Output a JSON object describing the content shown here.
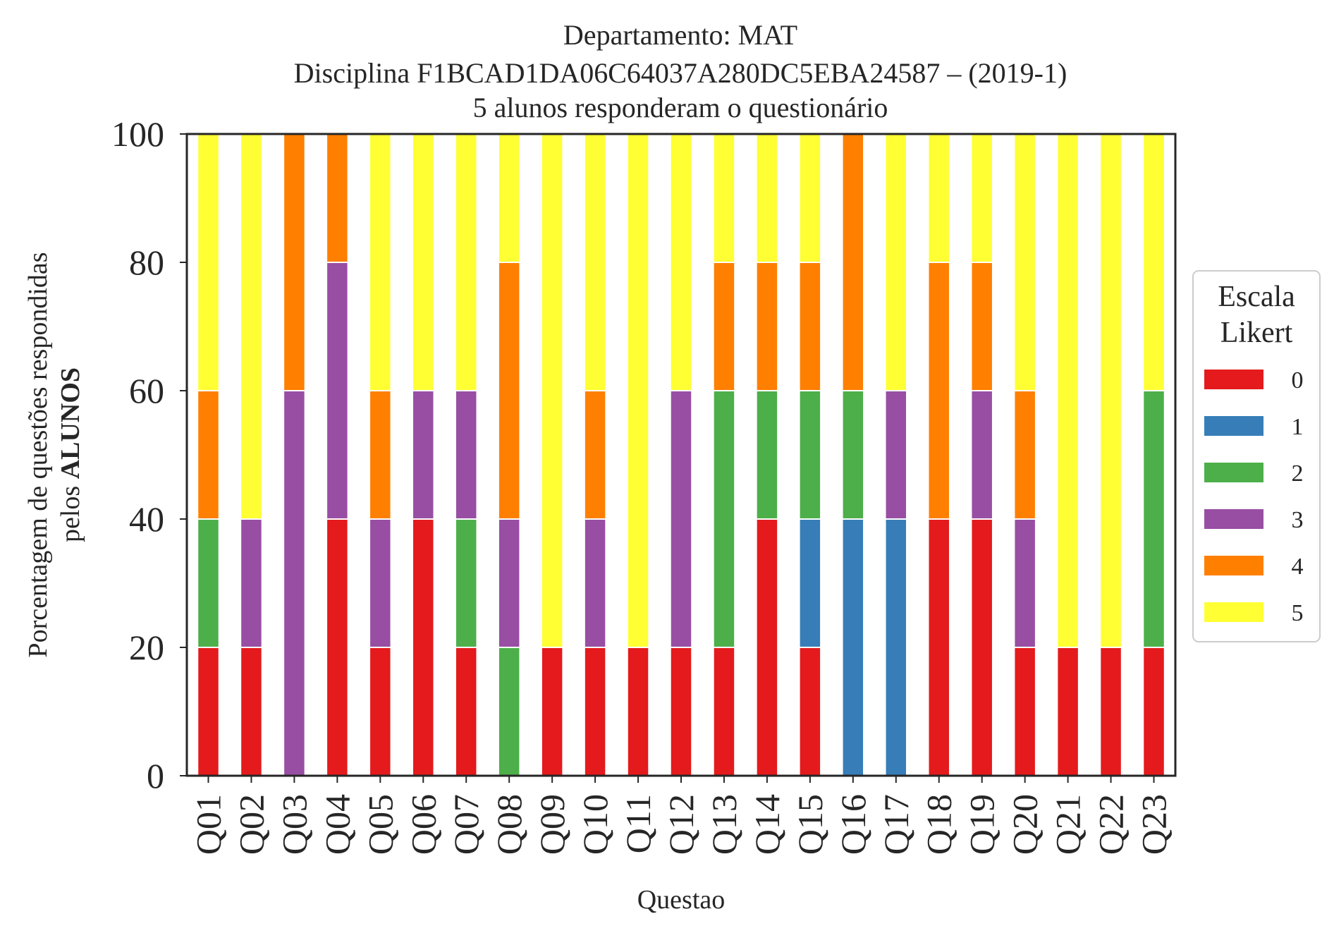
{
  "chart_data": {
    "type": "bar",
    "stacked": true,
    "title_lines": [
      "Departamento: MAT",
      "Disciplina F1BCAD1DA06C64037A280DC5EBA24587 – (2019-1)",
      "5 alunos responderam o questionário"
    ],
    "xlabel": "Questao",
    "ylabel_line1": "Porcentagem de questões respondidas",
    "ylabel_line2_prefix": "pelos ",
    "ylabel_line2_bold": "ALUNOS",
    "ylim": [
      0,
      100
    ],
    "yticks": [
      "0",
      "20",
      "40",
      "60",
      "80",
      "100"
    ],
    "grid": false,
    "legend_position": "right",
    "legend_title_lines": [
      "Escala",
      "Likert"
    ],
    "categories": [
      "Q01",
      "Q02",
      "Q03",
      "Q04",
      "Q05",
      "Q06",
      "Q07",
      "Q08",
      "Q09",
      "Q10",
      "Q11",
      "Q12",
      "Q13",
      "Q14",
      "Q15",
      "Q16",
      "Q17",
      "Q18",
      "Q19",
      "Q20",
      "Q21",
      "Q22",
      "Q23"
    ],
    "series": [
      {
        "name": "0",
        "color": "#e41a1c",
        "values": [
          20,
          20,
          0,
          40,
          20,
          40,
          20,
          0,
          20,
          20,
          20,
          20,
          20,
          40,
          20,
          0,
          0,
          40,
          40,
          20,
          20,
          20,
          20
        ]
      },
      {
        "name": "1",
        "color": "#377eb8",
        "values": [
          0,
          0,
          0,
          0,
          0,
          0,
          0,
          0,
          0,
          0,
          0,
          0,
          0,
          0,
          20,
          40,
          40,
          0,
          0,
          0,
          0,
          0,
          0
        ]
      },
      {
        "name": "2",
        "color": "#4daf4a",
        "values": [
          20,
          0,
          0,
          0,
          0,
          0,
          20,
          20,
          0,
          0,
          0,
          0,
          40,
          20,
          20,
          20,
          0,
          0,
          0,
          0,
          0,
          0,
          40
        ]
      },
      {
        "name": "3",
        "color": "#984ea3",
        "values": [
          0,
          20,
          60,
          40,
          20,
          20,
          20,
          20,
          0,
          20,
          0,
          40,
          0,
          0,
          0,
          0,
          20,
          0,
          20,
          20,
          0,
          0,
          0
        ]
      },
      {
        "name": "4",
        "color": "#ff7f00",
        "values": [
          20,
          0,
          40,
          20,
          20,
          0,
          0,
          40,
          0,
          20,
          0,
          0,
          20,
          20,
          20,
          40,
          0,
          40,
          20,
          20,
          0,
          0,
          0
        ]
      },
      {
        "name": "5",
        "color": "#ffff33",
        "values": [
          40,
          60,
          0,
          0,
          40,
          40,
          40,
          20,
          80,
          40,
          80,
          40,
          20,
          20,
          20,
          0,
          40,
          20,
          20,
          40,
          80,
          80,
          40
        ]
      }
    ]
  }
}
